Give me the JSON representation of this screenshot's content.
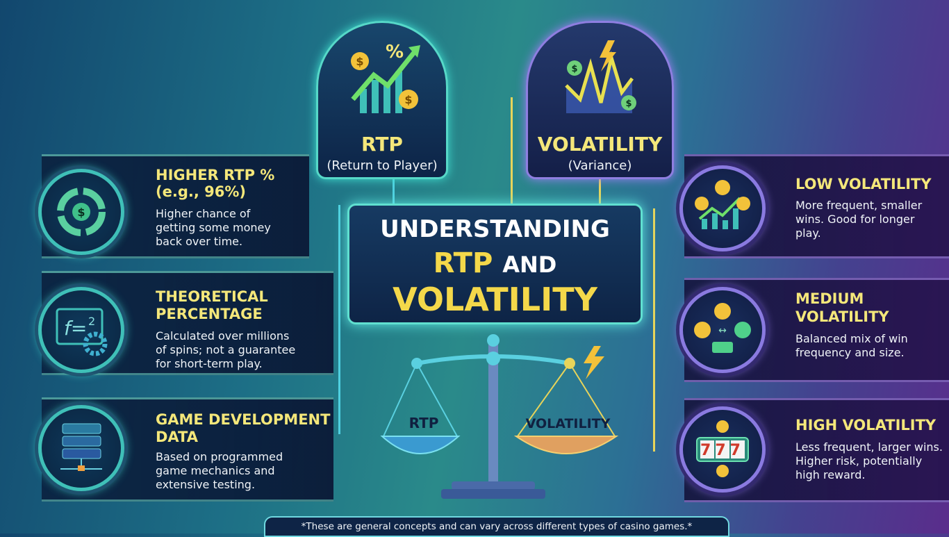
{
  "cards": {
    "rtp": {
      "title": "RTP",
      "subtitle": "(Return to Player)",
      "icon": "rising-chart-coins-icon"
    },
    "volatility": {
      "title": "VOLATILITY",
      "subtitle": "(Variance)",
      "icon": "volatile-chart-lightning-icon"
    }
  },
  "center_title": {
    "line1": "UNDERSTANDING",
    "line2_a": "RTP",
    "line2_b": "AND",
    "line3": "VOLATILITY"
  },
  "left_items": [
    {
      "title": "HIGHER RTP %",
      "title2": "(e.g., 96%)",
      "body": [
        "Higher chance of",
        "getting some money",
        "back over time."
      ],
      "icon": "cycle-dollar-icon"
    },
    {
      "title": "THEORETICAL",
      "title2": "PERCENTAGE",
      "body": [
        "Calculated over millions",
        "of spins; not a guarantee",
        "for short-term play."
      ],
      "icon": "formula-gear-icon"
    },
    {
      "title": "GAME DEVELOPMENT",
      "title2": "DATA",
      "body": [
        "Based on programmed",
        "game mechanics and",
        "extensive testing."
      ],
      "icon": "server-icon"
    }
  ],
  "right_items": [
    {
      "title": "LOW VOLATILITY",
      "title2": "",
      "body": [
        "More frequent, smaller",
        "wins. Good for longer",
        "play."
      ],
      "icon": "coins-bar-chart-icon"
    },
    {
      "title": "MEDIUM",
      "title2": "VOLATILITY",
      "body": [
        "Balanced mix of win",
        "frequency and size."
      ],
      "icon": "coins-balance-icon"
    },
    {
      "title": "HIGH VOLATILITY",
      "title2": "",
      "body": [
        "Less frequent, larger wins.",
        "Higher risk, potentially",
        "high reward."
      ],
      "icon": "slot-machine-777-icon"
    }
  ],
  "scale": {
    "left_label": "RTP",
    "right_label": "VOLATILITY",
    "reel_digits": "777"
  },
  "footer": "*These are general concepts and can vary across different types of casino games.*",
  "colors": {
    "accent_yellow": "#f4e77a",
    "teal": "#56d8c8",
    "purple": "#8e7ee0"
  }
}
